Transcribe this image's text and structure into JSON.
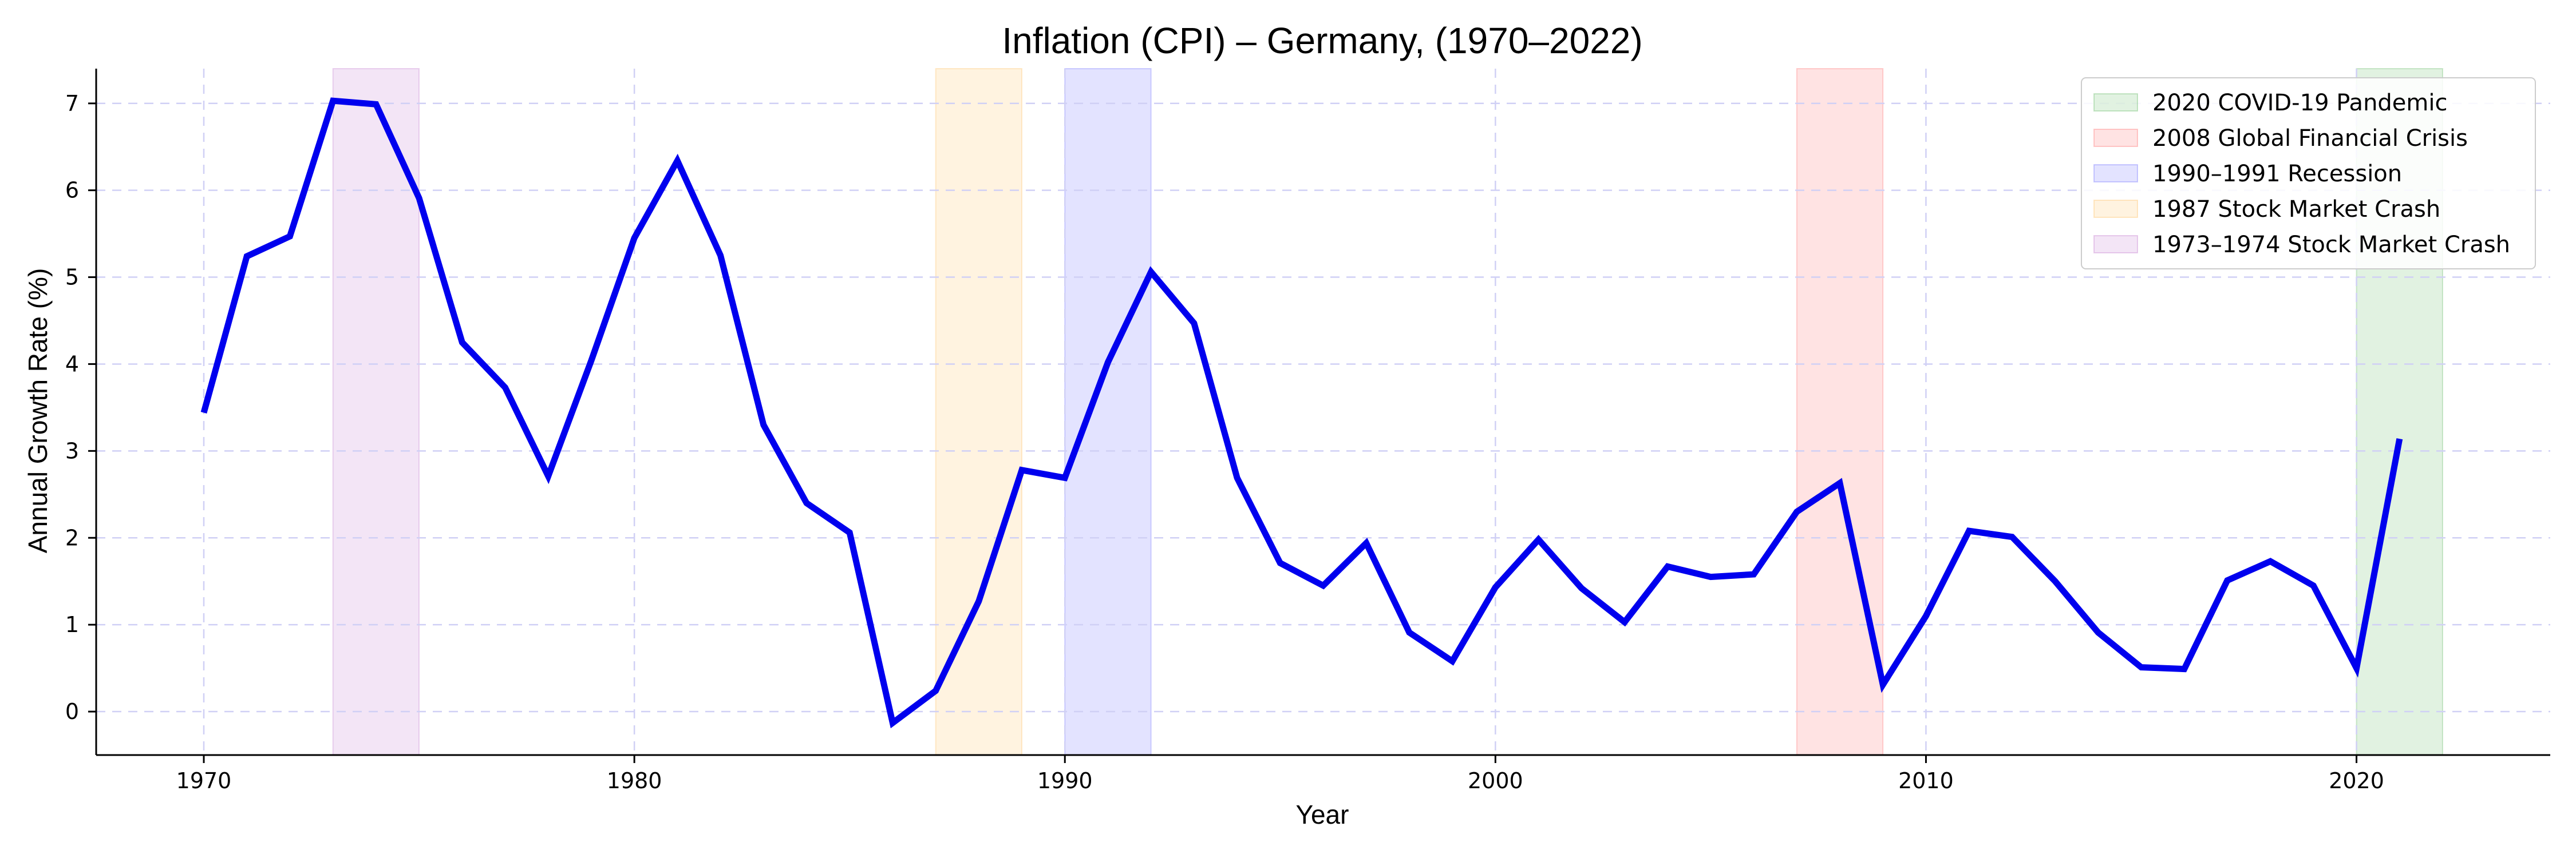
{
  "chart_data": {
    "type": "line",
    "title": "Inflation (CPI) – Germany, (1970–2022)",
    "xlabel": "Year",
    "ylabel": "Annual Growth Rate (%)",
    "xlim": [
      1967.5,
      2024.5
    ],
    "ylim": [
      -0.5,
      7.4
    ],
    "xticks": [
      1970,
      1980,
      1990,
      2000,
      2010,
      2020
    ],
    "yticks": [
      0,
      1,
      2,
      3,
      4,
      5,
      6,
      7
    ],
    "grid": true,
    "legend_position": "top-right",
    "series": [
      {
        "color": "#0000ee",
        "x": [
          1970,
          1971,
          1972,
          1973,
          1974,
          1975,
          1976,
          1977,
          1978,
          1979,
          1980,
          1981,
          1982,
          1983,
          1984,
          1985,
          1986,
          1987,
          1988,
          1989,
          1990,
          1991,
          1992,
          1993,
          1994,
          1995,
          1996,
          1997,
          1998,
          1999,
          2000,
          2001,
          2002,
          2003,
          2004,
          2005,
          2006,
          2007,
          2008,
          2009,
          2010,
          2011,
          2012,
          2013,
          2014,
          2015,
          2016,
          2017,
          2018,
          2019,
          2020,
          2021
        ],
        "values": [
          3.44,
          5.24,
          5.47,
          7.03,
          6.99,
          5.91,
          4.25,
          3.73,
          2.71,
          4.04,
          5.45,
          6.34,
          5.25,
          3.3,
          2.4,
          2.06,
          -0.13,
          0.24,
          1.27,
          2.78,
          2.69,
          4.02,
          5.06,
          4.47,
          2.69,
          1.71,
          1.45,
          1.94,
          0.91,
          0.58,
          1.43,
          1.98,
          1.42,
          1.03,
          1.67,
          1.55,
          1.58,
          2.3,
          2.63,
          0.31,
          1.1,
          2.08,
          2.01,
          1.5,
          0.91,
          0.51,
          0.49,
          1.51,
          1.73,
          1.45,
          0.5,
          3.14
        ]
      }
    ],
    "shaded_periods": [
      {
        "label": "2020 COVID-19 Pandemic",
        "start": 2020,
        "end": 2022,
        "color": "#2ca02c"
      },
      {
        "label": "2008 Global Financial Crisis",
        "start": 2007,
        "end": 2009,
        "color": "#ff3b3b"
      },
      {
        "label": "1990–1991 Recession",
        "start": 1990,
        "end": 1992,
        "color": "#3b3bff"
      },
      {
        "label": "1987 Stock Market Crash",
        "start": 1987,
        "end": 1989,
        "color": "#ffa726"
      },
      {
        "label": "1973–1974 Stock Market Crash",
        "start": 1973,
        "end": 1975,
        "color": "#ab47bc"
      }
    ]
  }
}
